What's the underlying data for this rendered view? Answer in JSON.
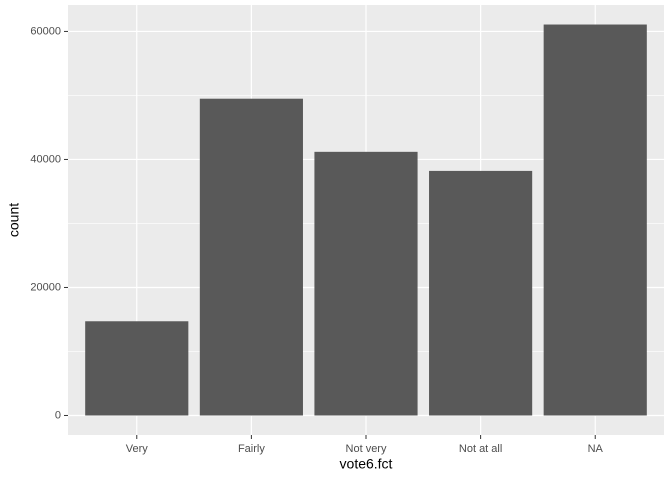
{
  "chart_data": {
    "type": "bar",
    "x_label": "vote6.fct",
    "y_label": "count",
    "categories": [
      "Very",
      "Fairly",
      "Not very",
      "Not at all",
      "NA"
    ],
    "values": [
      14720,
      49490,
      41190,
      38210,
      61080
    ],
    "color": "#595959",
    "ylim": [
      -3050,
      64130
    ],
    "yticks": [
      0,
      20000,
      40000,
      60000
    ],
    "minor_yticks": [
      10000,
      30000,
      50000
    ],
    "grid": true
  }
}
